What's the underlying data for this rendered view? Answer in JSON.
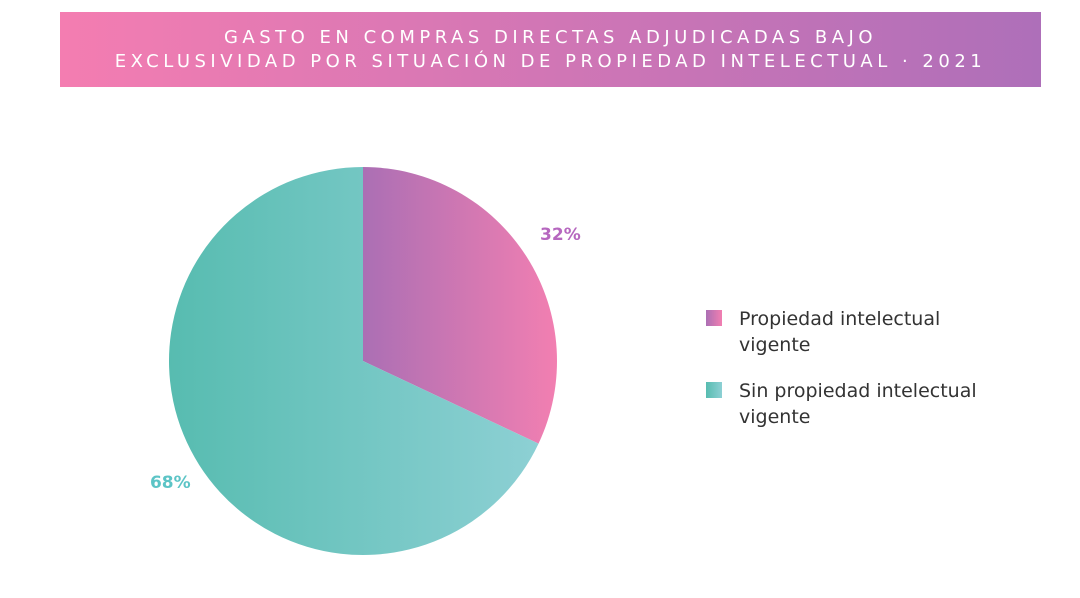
{
  "title": {
    "line1": "GASTO EN COMPRAS DIRECTAS ADJUDICADAS BAJO",
    "line2": "EXCLUSIVIDAD POR SITUACIÓN DE PROPIEDAD INTELECTUAL · 2021"
  },
  "colors": {
    "banner_start": "#f47db1",
    "banner_end": "#ae6fb9",
    "pink_start": "#ab6fb4",
    "pink_end": "#f27fb1",
    "teal_start": "#57bcb0",
    "teal_end": "#8dd0d4",
    "pink_label": "#b667bf",
    "teal_label": "#5cc4c6"
  },
  "chart_data": {
    "type": "pie",
    "title": "GASTO EN COMPRAS DIRECTAS ADJUDICADAS BAJO EXCLUSIVIDAD POR SITUACIÓN DE PROPIEDAD INTELECTUAL · 2021",
    "slices": [
      {
        "name": "Propiedad intelectual vigente",
        "value": 32,
        "label": "32%"
      },
      {
        "name": "Sin propiedad intelectual vigente",
        "value": 68,
        "label": "68%"
      }
    ],
    "legend_position": "right"
  },
  "legend": {
    "items": [
      {
        "label": "Propiedad intelectual vigente"
      },
      {
        "label": "Sin propiedad intelectual vigente"
      }
    ]
  }
}
